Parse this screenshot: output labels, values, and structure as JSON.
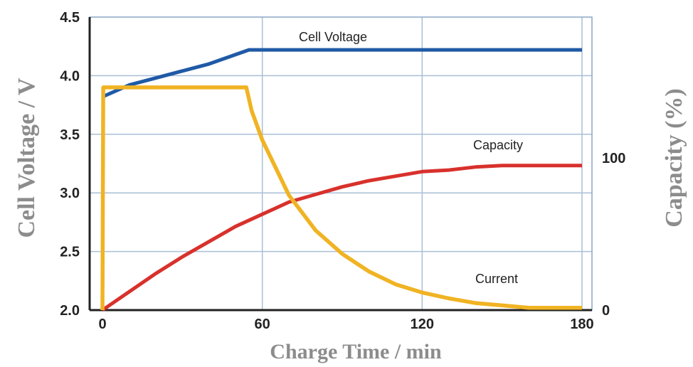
{
  "chart_data": {
    "type": "line",
    "xlabel": "Charge Time / min",
    "ylabel_left": "Cell Voltage / V",
    "ylabel_right": "Capacity (%)",
    "xlim": [
      0,
      180
    ],
    "ylim_left": [
      2.0,
      4.5
    ],
    "ylim_right_capacity": [
      0,
      100
    ],
    "x_ticks": [
      "0",
      "60",
      "120",
      "180"
    ],
    "y_ticks_left": [
      "2.0",
      "2.5",
      "3.0",
      "3.5",
      "4.0",
      "4.5"
    ],
    "y_ticks_right": [
      "0",
      "100"
    ],
    "grid": true,
    "colors": {
      "cell_voltage": "#1f5aa6",
      "capacity": "#d8312c",
      "current": "#f0b323",
      "grid": "#a9bfd6",
      "axis_title": "#8c8c8c"
    },
    "series": [
      {
        "key": "cell_voltage",
        "name": "Cell Voltage",
        "axis": "left",
        "points": [
          [
            0,
            3.82
          ],
          [
            10,
            3.92
          ],
          [
            20,
            3.98
          ],
          [
            30,
            4.04
          ],
          [
            40,
            4.1
          ],
          [
            55,
            4.22
          ],
          [
            60,
            4.22
          ],
          [
            120,
            4.22
          ],
          [
            180,
            4.22
          ]
        ]
      },
      {
        "key": "capacity",
        "name": "Capacity",
        "axis": "right",
        "points": [
          [
            0,
            0
          ],
          [
            10,
            12
          ],
          [
            20,
            24
          ],
          [
            30,
            35
          ],
          [
            40,
            45
          ],
          [
            50,
            55
          ],
          [
            60,
            63
          ],
          [
            70,
            71
          ],
          [
            80,
            76
          ],
          [
            90,
            81
          ],
          [
            100,
            85
          ],
          [
            110,
            88
          ],
          [
            120,
            91
          ],
          [
            130,
            92
          ],
          [
            140,
            94
          ],
          [
            150,
            95
          ],
          [
            160,
            95
          ],
          [
            170,
            95
          ],
          [
            180,
            95
          ]
        ]
      },
      {
        "key": "current",
        "name": "Current",
        "axis": "left",
        "points": [
          [
            0,
            2.0
          ],
          [
            0.3,
            3.9
          ],
          [
            10,
            3.9
          ],
          [
            20,
            3.9
          ],
          [
            30,
            3.9
          ],
          [
            40,
            3.9
          ],
          [
            54,
            3.9
          ],
          [
            56,
            3.7
          ],
          [
            60,
            3.45
          ],
          [
            70,
            2.98
          ],
          [
            80,
            2.68
          ],
          [
            90,
            2.48
          ],
          [
            100,
            2.33
          ],
          [
            110,
            2.22
          ],
          [
            120,
            2.15
          ],
          [
            130,
            2.1
          ],
          [
            140,
            2.06
          ],
          [
            150,
            2.04
          ],
          [
            160,
            2.02
          ],
          [
            170,
            2.02
          ],
          [
            180,
            2.02
          ]
        ]
      }
    ],
    "annotations": {
      "cell_voltage": "Cell Voltage",
      "capacity": "Capacity",
      "current": "Current"
    }
  }
}
